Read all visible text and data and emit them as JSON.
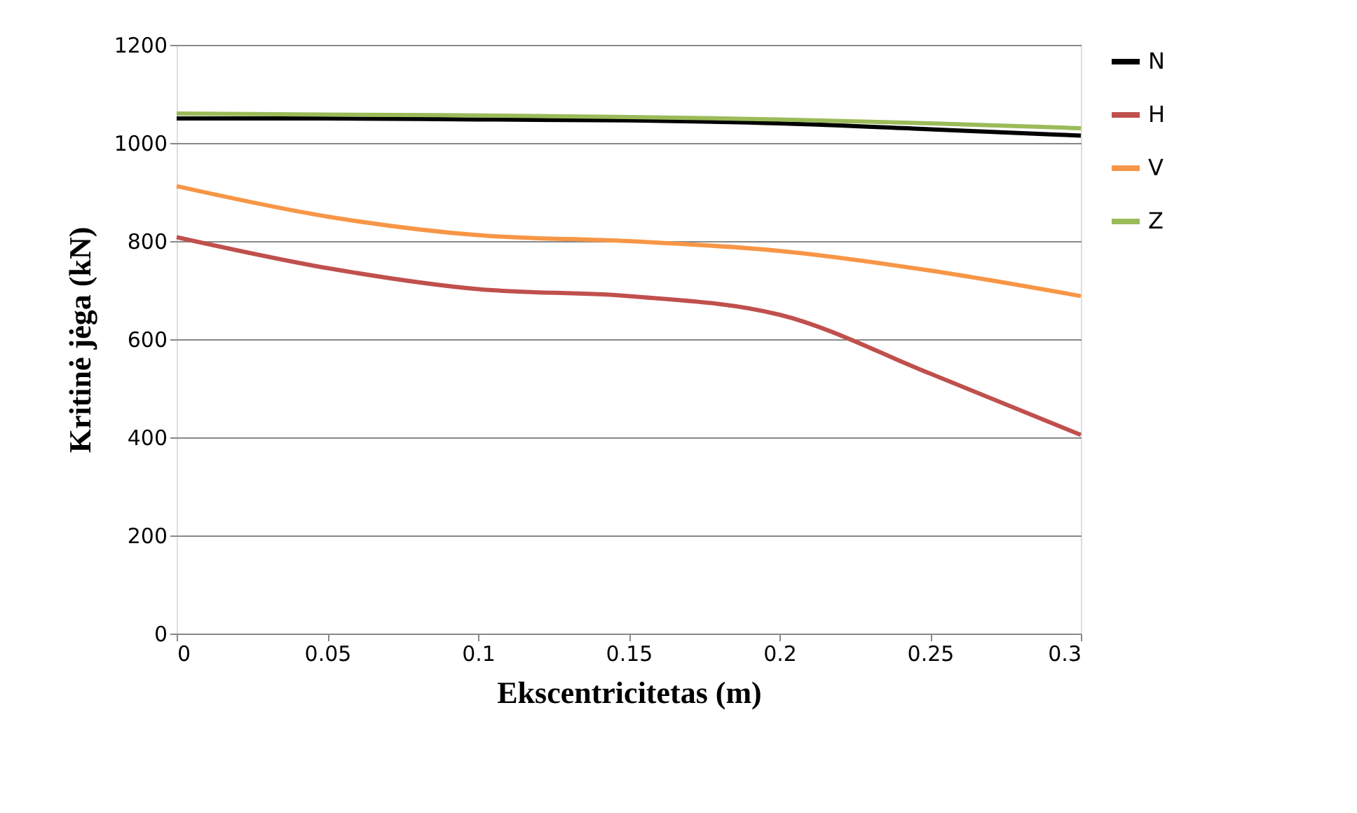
{
  "chart_data": {
    "type": "line",
    "xlabel": "Ekscentricitetas (m)",
    "ylabel": "Kritinė jėga (kN)",
    "x": [
      0,
      0.05,
      0.1,
      0.15,
      0.2,
      0.25,
      0.3
    ],
    "series": [
      {
        "name": "N",
        "color": "#000000",
        "values": [
          1050,
          1050,
          1048,
          1046,
          1040,
          1028,
          1015
        ]
      },
      {
        "name": "H",
        "color": "#c0504d",
        "values": [
          808,
          745,
          702,
          688,
          650,
          530,
          405
        ]
      },
      {
        "name": "V",
        "color": "#f79646",
        "values": [
          912,
          850,
          812,
          800,
          780,
          740,
          688
        ]
      },
      {
        "name": "Z",
        "color": "#9bbb59",
        "values": [
          1060,
          1058,
          1056,
          1053,
          1048,
          1040,
          1030
        ]
      }
    ],
    "xlim": [
      0,
      0.3
    ],
    "xticks": [
      {
        "value": 0,
        "label": "0"
      },
      0.05,
      0.1,
      0.15,
      0.2,
      0.25,
      0.3
    ],
    "ylim": [
      0,
      1200
    ],
    "yticks": [
      0,
      200,
      400,
      600,
      800,
      1000,
      1200
    ],
    "grid": "y",
    "legend": "right",
    "marker": "none",
    "line_style": "solid"
  }
}
